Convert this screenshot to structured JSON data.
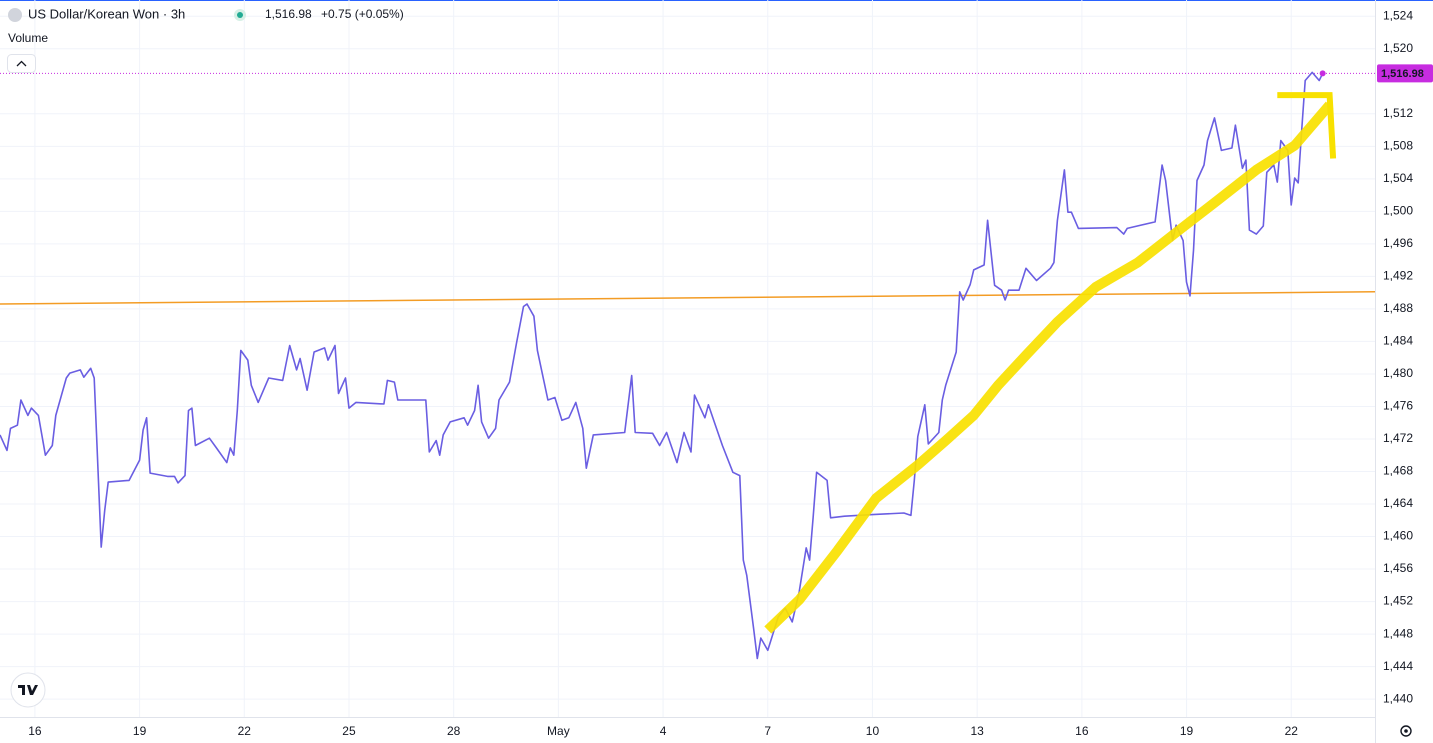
{
  "chart_data": {
    "type": "line",
    "title": "US Dollar/Korean Won · 3h",
    "subtitle": "Volume",
    "change": "+0.75 (+0.05%)",
    "last_price": {
      "value": 1516.98,
      "label": "1,516.98"
    },
    "price_color": "#c72ce0",
    "grid": true,
    "xlim": [
      -1,
      38.4
    ],
    "ylim": [
      1437.8,
      1526.0
    ],
    "xticks": [
      {
        "value": 0,
        "label": "16"
      },
      {
        "value": 3,
        "label": "19"
      },
      {
        "value": 6,
        "label": "22"
      },
      {
        "value": 9,
        "label": "25"
      },
      {
        "value": 12,
        "label": "28"
      },
      {
        "value": 15,
        "label": "May"
      },
      {
        "value": 18,
        "label": "4"
      },
      {
        "value": 21,
        "label": "7"
      },
      {
        "value": 24,
        "label": "10"
      },
      {
        "value": 27,
        "label": "13"
      },
      {
        "value": 30,
        "label": "16"
      },
      {
        "value": 33,
        "label": "19"
      },
      {
        "value": 36,
        "label": "22"
      }
    ],
    "yticks": [
      {
        "value": 1440,
        "label": "1,440"
      },
      {
        "value": 1444,
        "label": "1,444"
      },
      {
        "value": 1448,
        "label": "1,448"
      },
      {
        "value": 1452,
        "label": "1,452"
      },
      {
        "value": 1456,
        "label": "1,456"
      },
      {
        "value": 1460,
        "label": "1,460"
      },
      {
        "value": 1464,
        "label": "1,464"
      },
      {
        "value": 1468,
        "label": "1,468"
      },
      {
        "value": 1472,
        "label": "1,472"
      },
      {
        "value": 1476,
        "label": "1,476"
      },
      {
        "value": 1480,
        "label": "1,480"
      },
      {
        "value": 1484,
        "label": "1,484"
      },
      {
        "value": 1488,
        "label": "1,488"
      },
      {
        "value": 1492,
        "label": "1,492"
      },
      {
        "value": 1496,
        "label": "1,496"
      },
      {
        "value": 1500,
        "label": "1,500"
      },
      {
        "value": 1504,
        "label": "1,504"
      },
      {
        "value": 1508,
        "label": "1,508"
      },
      {
        "value": 1512,
        "label": "1,512"
      },
      {
        "value": 1520,
        "label": "1,520"
      },
      {
        "value": 1524,
        "label": "1,524"
      }
    ],
    "x": [
      -1.0,
      -0.8,
      -0.7,
      -0.5,
      -0.4,
      -0.2,
      -0.1,
      0.1,
      0.3,
      0.5,
      0.6,
      0.9,
      1.0,
      1.3,
      1.4,
      1.6,
      1.7,
      1.9,
      2.0,
      2.1,
      2.7,
      3.0,
      3.1,
      3.2,
      3.3,
      3.8,
      4.0,
      4.1,
      4.3,
      4.4,
      4.5,
      4.6,
      5.0,
      5.2,
      5.5,
      5.6,
      5.7,
      5.8,
      5.9,
      6.1,
      6.2,
      6.4,
      6.7,
      7.1,
      7.3,
      7.5,
      7.6,
      7.8,
      8.0,
      8.3,
      8.4,
      8.6,
      8.7,
      8.9,
      9.0,
      9.2,
      10.0,
      10.1,
      10.3,
      10.4,
      11.2,
      11.3,
      11.5,
      11.6,
      11.7,
      11.9,
      12.3,
      12.4,
      12.6,
      12.7,
      12.8,
      13.0,
      13.2,
      13.3,
      13.6,
      13.8,
      14.0,
      14.1,
      14.3,
      14.4,
      14.7,
      14.9,
      15.1,
      15.3,
      15.5,
      15.7,
      15.8,
      16.0,
      16.9,
      17.1,
      17.2,
      17.7,
      17.9,
      18.1,
      18.4,
      18.6,
      18.8,
      18.9,
      19.2,
      19.3,
      19.5,
      19.7,
      20.0,
      20.2,
      20.3,
      20.4,
      20.6,
      20.7,
      20.8,
      21.0,
      21.3,
      21.5,
      21.7,
      21.9,
      22.1,
      22.2,
      22.3,
      22.4,
      22.7,
      22.8,
      23.2,
      24.0,
      24.9,
      25.1,
      25.2,
      25.3,
      25.5,
      25.6,
      25.9,
      26.0,
      26.1,
      26.4,
      26.5,
      26.6,
      26.8,
      26.9,
      27.2,
      27.3,
      27.5,
      27.7,
      27.8,
      27.9,
      28.2,
      28.4,
      28.7,
      29.1,
      29.2,
      29.3,
      29.5,
      29.6,
      29.7,
      29.9,
      31.0,
      31.2,
      31.3,
      32.1,
      32.3,
      32.4,
      32.6,
      32.7,
      32.9,
      33.0,
      33.1,
      33.2,
      33.3,
      33.5,
      33.6,
      33.8,
      34.0,
      34.3,
      34.4,
      34.6,
      34.7,
      34.8,
      35.0,
      35.2,
      35.3,
      35.5,
      35.6,
      35.7,
      35.9,
      36.0,
      36.1,
      36.2,
      36.3,
      36.4,
      36.6,
      36.8,
      36.9
    ],
    "series": [
      {
        "name": "US Dollar/Korean Won",
        "color": "#6a5ee2",
        "values": [
          1472.5,
          1470.6,
          1473.3,
          1473.7,
          1476.8,
          1474.9,
          1475.8,
          1474.9,
          1470.0,
          1471.2,
          1474.9,
          1479.5,
          1480.1,
          1480.5,
          1479.6,
          1480.7,
          1479.5,
          1458.7,
          1463.2,
          1466.7,
          1466.9,
          1469.4,
          1473.1,
          1474.6,
          1467.8,
          1467.4,
          1467.4,
          1466.6,
          1467.5,
          1475.5,
          1475.8,
          1471.2,
          1472.1,
          1470.9,
          1469.1,
          1470.9,
          1470.0,
          1475.5,
          1482.9,
          1481.7,
          1478.6,
          1476.5,
          1479.5,
          1479.2,
          1483.5,
          1480.5,
          1481.9,
          1478.0,
          1482.7,
          1483.2,
          1481.7,
          1483.5,
          1477.6,
          1479.5,
          1475.8,
          1476.5,
          1476.3,
          1479.2,
          1479.0,
          1476.8,
          1476.8,
          1470.4,
          1471.8,
          1470.0,
          1472.5,
          1474.1,
          1474.6,
          1473.7,
          1475.5,
          1478.6,
          1474.1,
          1472.1,
          1473.3,
          1476.8,
          1479.0,
          1483.8,
          1488.3,
          1488.6,
          1487.1,
          1482.9,
          1476.8,
          1477.1,
          1474.3,
          1474.6,
          1476.5,
          1473.3,
          1468.4,
          1472.5,
          1472.8,
          1479.8,
          1472.8,
          1472.7,
          1471.2,
          1472.8,
          1469.1,
          1472.8,
          1470.4,
          1477.4,
          1474.6,
          1476.2,
          1473.7,
          1471.2,
          1467.9,
          1467.5,
          1457.1,
          1455.2,
          1448.5,
          1445.0,
          1447.5,
          1446.0,
          1450.1,
          1451.2,
          1449.5,
          1453.2,
          1458.6,
          1457.1,
          1462.3,
          1467.9,
          1466.9,
          1462.3,
          1462.5,
          1462.7,
          1462.9,
          1462.6,
          1466.9,
          1472.3,
          1476.2,
          1471.4,
          1472.8,
          1476.8,
          1478.6,
          1482.7,
          1490.1,
          1489.1,
          1491.0,
          1492.8,
          1493.4,
          1498.9,
          1490.9,
          1490.3,
          1489.1,
          1490.3,
          1490.3,
          1493.0,
          1491.5,
          1493.0,
          1493.7,
          1498.9,
          1505.1,
          1499.9,
          1499.9,
          1497.9,
          1498.0,
          1497.2,
          1497.9,
          1498.7,
          1505.7,
          1503.8,
          1496.4,
          1498.3,
          1496.4,
          1491.3,
          1489.6,
          1495.2,
          1503.8,
          1505.7,
          1508.7,
          1511.5,
          1507.5,
          1507.8,
          1510.6,
          1505.3,
          1506.3,
          1497.7,
          1497.2,
          1498.2,
          1504.8,
          1505.7,
          1503.6,
          1508.7,
          1507.5,
          1500.8,
          1504.1,
          1503.5,
          1510.0,
          1516.1,
          1517.1,
          1516.1,
          1516.98
        ]
      }
    ],
    "trendline": {
      "color": "#f39c25",
      "x": [
        -1,
        38.4
      ],
      "values": [
        1488.6,
        1490.1
      ]
    },
    "drawing": {
      "color": "#f8e100",
      "x": [
        21.0,
        21.9,
        23.0,
        24.1,
        25.3,
        26.1,
        26.9,
        27.6,
        28.4,
        29.3,
        30.4,
        31.6,
        32.7,
        33.9,
        35.0,
        36.1,
        37.1
      ],
      "values": [
        1448.5,
        1452.2,
        1458.3,
        1464.7,
        1468.8,
        1471.8,
        1474.9,
        1478.6,
        1482.3,
        1486.4,
        1490.7,
        1493.7,
        1497.4,
        1501.4,
        1505.1,
        1508.1,
        1513.1
      ],
      "arrow_x": [
        35.6,
        37.1,
        37.2
      ],
      "arrow_values": [
        1514.3,
        1514.3,
        1506.5
      ]
    }
  }
}
